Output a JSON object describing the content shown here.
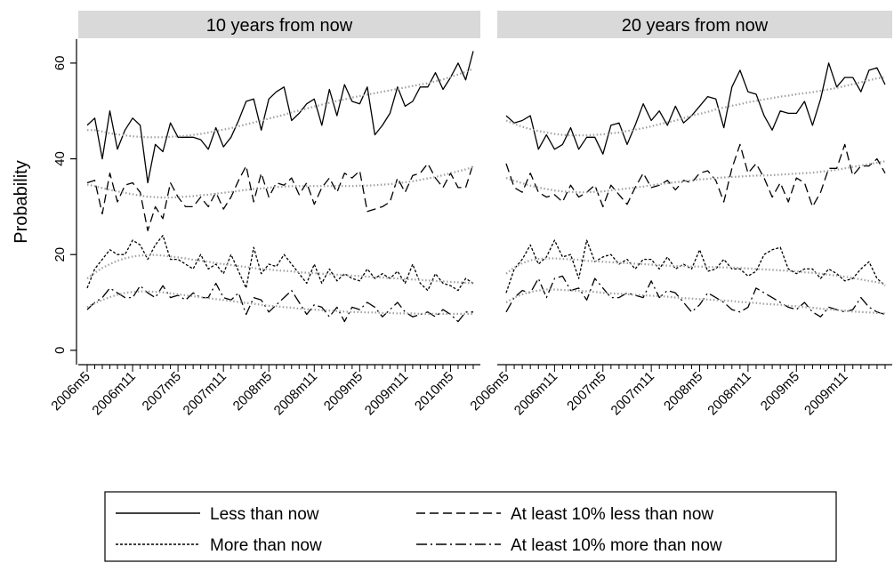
{
  "chart_data": {
    "type": "line",
    "ylabel": "Probability",
    "ylim": [
      -3,
      65
    ],
    "yticks": [
      0,
      20,
      40,
      60
    ],
    "x_tick_labels": [
      "2006m5",
      "2006m11",
      "2007m5",
      "2007m11",
      "2008m5",
      "2008m11",
      "2009m5",
      "2009m11",
      "2010m5"
    ],
    "legend_position": "bottom",
    "legend": [
      {
        "label": "Less than now",
        "style": "solid"
      },
      {
        "label": "At least 10% less than now",
        "style": "dashed"
      },
      {
        "label": "More than now",
        "style": "dotted"
      },
      {
        "label": "At least 10% more than now",
        "style": "dashdot"
      }
    ],
    "colors": {
      "series": "#000000",
      "trend": "#a0a0a0",
      "strip": "#d9d9d9"
    },
    "panels": [
      {
        "title": "10 years from now",
        "series": [
          {
            "name": "Less than now",
            "style": "solid",
            "values": [
              47,
              48.5,
              40,
              50,
              42,
              46,
              48.5,
              47,
              35,
              43,
              41.5,
              47.5,
              44.5,
              44.5,
              44.5,
              44,
              42,
              46.5,
              42.5,
              44.5,
              48,
              52,
              52.5,
              46,
              52.5,
              54,
              55,
              48,
              49.5,
              51.5,
              52.5,
              47,
              54.5,
              49,
              55.5,
              52,
              51.5,
              55,
              45,
              47,
              49.5,
              55,
              51,
              52,
              55,
              55,
              58,
              54.5,
              57,
              60,
              56.5,
              62.5
            ]
          },
          {
            "name": "At least 10% less than now",
            "style": "dashed",
            "values": [
              35,
              35.5,
              28.5,
              37,
              31,
              34.5,
              35,
              33,
              25,
              30,
              27.5,
              35,
              32,
              30,
              30,
              32,
              30,
              33,
              29.5,
              32,
              35.5,
              38.5,
              31,
              37,
              32,
              35,
              34.5,
              36,
              32.5,
              35,
              30.5,
              34,
              36,
              33,
              37,
              36,
              37.5,
              29,
              29.5,
              30,
              31,
              36,
              33,
              36.5,
              37,
              39,
              36,
              34,
              37,
              34,
              34,
              39
            ]
          },
          {
            "name": "More than now",
            "style": "dotted",
            "values": [
              13,
              17,
              19,
              21,
              20,
              20,
              23,
              22,
              19,
              22,
              24,
              19,
              19,
              18,
              17,
              20,
              17,
              18,
              16,
              20,
              16.5,
              13,
              21.5,
              16,
              18,
              17.5,
              20,
              18,
              16,
              14,
              18,
              14,
              17,
              14.5,
              16,
              15,
              14.5,
              17,
              15,
              16,
              15,
              16.5,
              14,
              18,
              14,
              12.5,
              16,
              14,
              13.5,
              12.5,
              15,
              14
            ]
          },
          {
            "name": "At least 10% more than now",
            "style": "dashdot",
            "values": [
              8.5,
              10,
              11,
              13,
              12,
              11,
              11,
              13.5,
              12,
              11,
              13.5,
              11,
              11.5,
              10.5,
              12,
              11,
              11,
              14,
              11,
              10.5,
              12,
              7.5,
              11,
              10.5,
              8,
              9.5,
              11,
              12.5,
              10,
              7.5,
              9.5,
              9,
              7,
              9,
              6,
              9,
              8.5,
              10,
              9,
              7,
              8.5,
              10,
              8,
              7,
              7.5,
              8,
              7,
              8.5,
              7.5,
              6,
              8,
              8
            ]
          },
          {
            "name": "trend",
            "style": "trend",
            "values": [
              46,
              46,
              45.7,
              45.3,
              45.1,
              44.9,
              44.7,
              44.6,
              44.5,
              44.5,
              44.5,
              44.6,
              44.7,
              44.8,
              45,
              45.2,
              45.5,
              45.8,
              46.1,
              46.4,
              46.8,
              47.2,
              47.6,
              48,
              48.4,
              48.8,
              49.2,
              49.7,
              50.1,
              50.5,
              50.9,
              51.3,
              51.7,
              52.1,
              52.4,
              52.8,
              53.1,
              53.4,
              53.7,
              54,
              54.3,
              54.6,
              54.9,
              55.2,
              55.5,
              55.8,
              56.2,
              56.6,
              57.1,
              57.6,
              58.2,
              58.8
            ]
          },
          {
            "name": "trend",
            "style": "trend",
            "values": [
              34.6,
              34.3,
              33.9,
              33.5,
              33.2,
              32.9,
              32.6,
              32.3,
              32.1,
              32,
              31.9,
              31.9,
              32,
              32.1,
              32.2,
              32.4,
              32.5,
              32.7,
              32.9,
              33.1,
              33.3,
              33.5,
              33.7,
              33.8,
              34,
              34.1,
              34.2,
              34.3,
              34.3,
              34.3,
              34.3,
              34.3,
              34.3,
              34.3,
              34.3,
              34.3,
              34.4,
              34.4,
              34.5,
              34.6,
              34.7,
              34.9,
              35.1,
              35.3,
              35.6,
              35.9,
              36.2,
              36.6,
              37,
              37.4,
              37.8,
              38.3
            ]
          },
          {
            "name": "trend",
            "style": "trend",
            "values": [
              15,
              16.2,
              17.2,
              18,
              18.7,
              19.2,
              19.6,
              19.8,
              19.9,
              19.9,
              19.8,
              19.6,
              19.4,
              19.2,
              18.9,
              18.7,
              18.5,
              18.2,
              18,
              17.8,
              17.6,
              17.4,
              17.2,
              17,
              16.9,
              16.7,
              16.6,
              16.5,
              16.3,
              16.2,
              16.1,
              16,
              15.9,
              15.8,
              15.7,
              15.6,
              15.5,
              15.4,
              15.3,
              15.2,
              15.1,
              15,
              14.9,
              14.8,
              14.7,
              14.6,
              14.5,
              14.4,
              14.3,
              14.2,
              14.1,
              14
            ]
          },
          {
            "name": "trend",
            "style": "trend",
            "values": [
              9,
              9.8,
              10.5,
              11.1,
              11.6,
              12,
              12.2,
              12.3,
              12.3,
              12.2,
              12.1,
              11.9,
              11.7,
              11.5,
              11.3,
              11.1,
              10.9,
              10.7,
              10.5,
              10.3,
              10.1,
              9.9,
              9.7,
              9.5,
              9.3,
              9.2,
              9,
              8.9,
              8.7,
              8.6,
              8.5,
              8.4,
              8.3,
              8.2,
              8.1,
              8,
              8,
              7.9,
              7.9,
              7.8,
              7.8,
              7.7,
              7.7,
              7.7,
              7.6,
              7.6,
              7.6,
              7.6,
              7.6,
              7.6,
              7.6,
              7.6
            ]
          }
        ]
      },
      {
        "title": "20 years from now",
        "series": [
          {
            "name": "Less than now",
            "style": "solid",
            "values": [
              49,
              47.5,
              48,
              49,
              42,
              45,
              42,
              43,
              46.5,
              42,
              44.5,
              44.5,
              41,
              47,
              47.5,
              43,
              47,
              51.5,
              48,
              50,
              47,
              51,
              47.5,
              49,
              51,
              53,
              52.5,
              46.5,
              55,
              58.5,
              54,
              53.5,
              49,
              46,
              50,
              49.5,
              49.5,
              52,
              47,
              52.5,
              60,
              55,
              57,
              57,
              54,
              58.5,
              59,
              55.5
            ]
          },
          {
            "name": "At least 10% less than now",
            "style": "dashed",
            "values": [
              39,
              34,
              33,
              37,
              33,
              32,
              32.5,
              31,
              34.5,
              32,
              33,
              34.5,
              30,
              34.5,
              32.5,
              30.5,
              34,
              37,
              34,
              34.5,
              35.5,
              33.5,
              35.5,
              35,
              37,
              37.5,
              35.5,
              31,
              38,
              43,
              37,
              39,
              36,
              32,
              35,
              31,
              36,
              35,
              30,
              33,
              38,
              38,
              43,
              36.5,
              38.5,
              38.5,
              40,
              37
            ]
          },
          {
            "name": "More than now",
            "style": "dotted",
            "values": [
              12,
              17,
              19,
              22,
              18,
              19.5,
              23,
              19.5,
              20,
              15,
              23,
              18.5,
              19.5,
              20,
              18,
              19,
              17,
              19,
              19,
              17,
              19.5,
              17,
              18,
              17,
              21,
              16.5,
              17,
              19,
              17,
              17,
              15.5,
              16.5,
              20,
              21,
              21.5,
              17,
              16,
              17,
              17,
              15,
              17,
              16,
              14.5,
              15,
              17,
              18.5,
              15,
              13.5
            ]
          },
          {
            "name": "At least 10% more than now",
            "style": "dashdot",
            "values": [
              8,
              11,
              12.5,
              12,
              15,
              11,
              15,
              15.5,
              12.5,
              13,
              10.5,
              15,
              13,
              11,
              11,
              12,
              11.5,
              11,
              14.5,
              11,
              12.5,
              12,
              10,
              8,
              9.5,
              12,
              11,
              10,
              8.5,
              8,
              9,
              13,
              12,
              11,
              10,
              9,
              8.5,
              10,
              8,
              7,
              9,
              8.5,
              8,
              8.5,
              11,
              9,
              8,
              7.5
            ]
          },
          {
            "name": "trend",
            "style": "trend",
            "values": [
              48,
              47.3,
              46.7,
              46.2,
              45.8,
              45.5,
              45.2,
              45,
              44.9,
              44.9,
              44.9,
              45,
              45.1,
              45.3,
              45.5,
              45.8,
              46.1,
              46.4,
              46.8,
              47.2,
              47.6,
              48,
              48.5,
              49,
              49.4,
              49.8,
              50.3,
              50.7,
              51.1,
              51.4,
              51.8,
              52.1,
              52.4,
              52.7,
              53,
              53.2,
              53.5,
              53.7,
              53.9,
              54.2,
              54.5,
              54.8,
              55.2,
              55.6,
              56,
              56.4,
              56.8,
              57
            ]
          },
          {
            "name": "trend",
            "style": "trend",
            "values": [
              36,
              35.4,
              34.9,
              34.4,
              34,
              33.7,
              33.4,
              33.2,
              33.1,
              33,
              33,
              33.1,
              33.2,
              33.4,
              33.6,
              33.8,
              34,
              34.2,
              34.5,
              34.7,
              34.9,
              35.1,
              35.3,
              35.5,
              35.7,
              35.8,
              36,
              36.1,
              36.2,
              36.3,
              36.4,
              36.5,
              36.5,
              36.6,
              36.7,
              36.8,
              36.9,
              37,
              37.1,
              37.3,
              37.5,
              37.7,
              38,
              38.3,
              38.6,
              38.9,
              39.2,
              39.5
            ]
          },
          {
            "name": "trend",
            "style": "trend",
            "values": [
              16,
              17.3,
              18.2,
              18.8,
              19.1,
              19.2,
              19.2,
              19.1,
              19,
              18.9,
              18.7,
              18.6,
              18.5,
              18.4,
              18.3,
              18.2,
              18.1,
              18,
              17.9,
              17.8,
              17.7,
              17.6,
              17.6,
              17.5,
              17.5,
              17.4,
              17.4,
              17.3,
              17.3,
              17.2,
              17.1,
              17,
              16.9,
              16.8,
              16.7,
              16.6,
              16.5,
              16.3,
              16.2,
              16,
              15.8,
              15.6,
              15.4,
              15.1,
              14.8,
              14.5,
              14.2,
              13.9
            ]
          },
          {
            "name": "trend",
            "style": "trend",
            "values": [
              10,
              11,
              11.7,
              12.2,
              12.5,
              12.7,
              12.7,
              12.6,
              12.5,
              12.4,
              12.3,
              12.2,
              12,
              11.9,
              11.8,
              11.7,
              11.6,
              11.5,
              11.4,
              11.3,
              11.2,
              11,
              10.9,
              10.8,
              10.7,
              10.6,
              10.5,
              10.4,
              10.3,
              10.1,
              10,
              9.9,
              9.7,
              9.6,
              9.5,
              9.3,
              9.2,
              9,
              8.9,
              8.7,
              8.6,
              8.4,
              8.3,
              8.1,
              8,
              7.9,
              7.8,
              7.7
            ]
          }
        ]
      }
    ]
  }
}
